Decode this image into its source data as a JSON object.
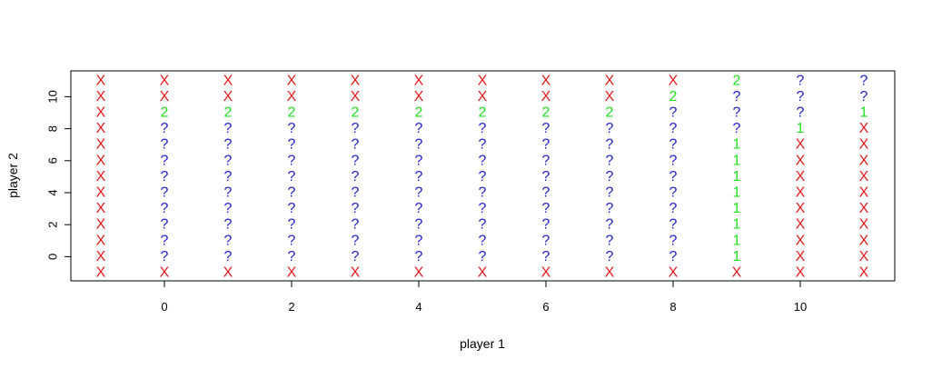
{
  "chart_data": {
    "type": "scatter",
    "title": "",
    "xlabel": "player 1",
    "ylabel": "player 2",
    "xlim": [
      -1,
      11
    ],
    "ylim": [
      -1,
      11
    ],
    "x_ticks": [
      0,
      2,
      4,
      6,
      8,
      10
    ],
    "y_ticks": [
      0,
      2,
      4,
      6,
      8,
      10
    ],
    "grid": false,
    "legend": "none",
    "symbol_colors": {
      "X": "#e41a1c",
      "?": "#1f1fd1",
      "1": "#22e022",
      "2": "#22e022"
    },
    "x": [
      -1,
      0,
      1,
      2,
      3,
      4,
      5,
      6,
      7,
      8,
      9,
      10,
      11
    ],
    "y": [
      -1,
      0,
      1,
      2,
      3,
      4,
      5,
      6,
      7,
      8,
      9,
      10,
      11
    ],
    "grid_symbols_top_down": [
      [
        "X",
        "X",
        "X",
        "X",
        "X",
        "X",
        "X",
        "X",
        "X",
        "X",
        "2",
        "?",
        "?"
      ],
      [
        "X",
        "X",
        "X",
        "X",
        "X",
        "X",
        "X",
        "X",
        "X",
        "2",
        "?",
        "?",
        "?"
      ],
      [
        "X",
        "2",
        "2",
        "2",
        "2",
        "2",
        "2",
        "2",
        "2",
        "?",
        "?",
        "?",
        "1"
      ],
      [
        "X",
        "?",
        "?",
        "?",
        "?",
        "?",
        "?",
        "?",
        "?",
        "?",
        "?",
        "1",
        "X"
      ],
      [
        "X",
        "?",
        "?",
        "?",
        "?",
        "?",
        "?",
        "?",
        "?",
        "?",
        "1",
        "X",
        "X"
      ],
      [
        "X",
        "?",
        "?",
        "?",
        "?",
        "?",
        "?",
        "?",
        "?",
        "?",
        "1",
        "X",
        "X"
      ],
      [
        "X",
        "?",
        "?",
        "?",
        "?",
        "?",
        "?",
        "?",
        "?",
        "?",
        "1",
        "X",
        "X"
      ],
      [
        "X",
        "?",
        "?",
        "?",
        "?",
        "?",
        "?",
        "?",
        "?",
        "?",
        "1",
        "X",
        "X"
      ],
      [
        "X",
        "?",
        "?",
        "?",
        "?",
        "?",
        "?",
        "?",
        "?",
        "?",
        "1",
        "X",
        "X"
      ],
      [
        "X",
        "?",
        "?",
        "?",
        "?",
        "?",
        "?",
        "?",
        "?",
        "?",
        "1",
        "X",
        "X"
      ],
      [
        "X",
        "?",
        "?",
        "?",
        "?",
        "?",
        "?",
        "?",
        "?",
        "?",
        "1",
        "X",
        "X"
      ],
      [
        "X",
        "?",
        "?",
        "?",
        "?",
        "?",
        "?",
        "?",
        "?",
        "?",
        "1",
        "X",
        "X"
      ],
      [
        "X",
        "X",
        "X",
        "X",
        "X",
        "X",
        "X",
        "X",
        "X",
        "X",
        "X",
        "X",
        "X"
      ]
    ]
  }
}
